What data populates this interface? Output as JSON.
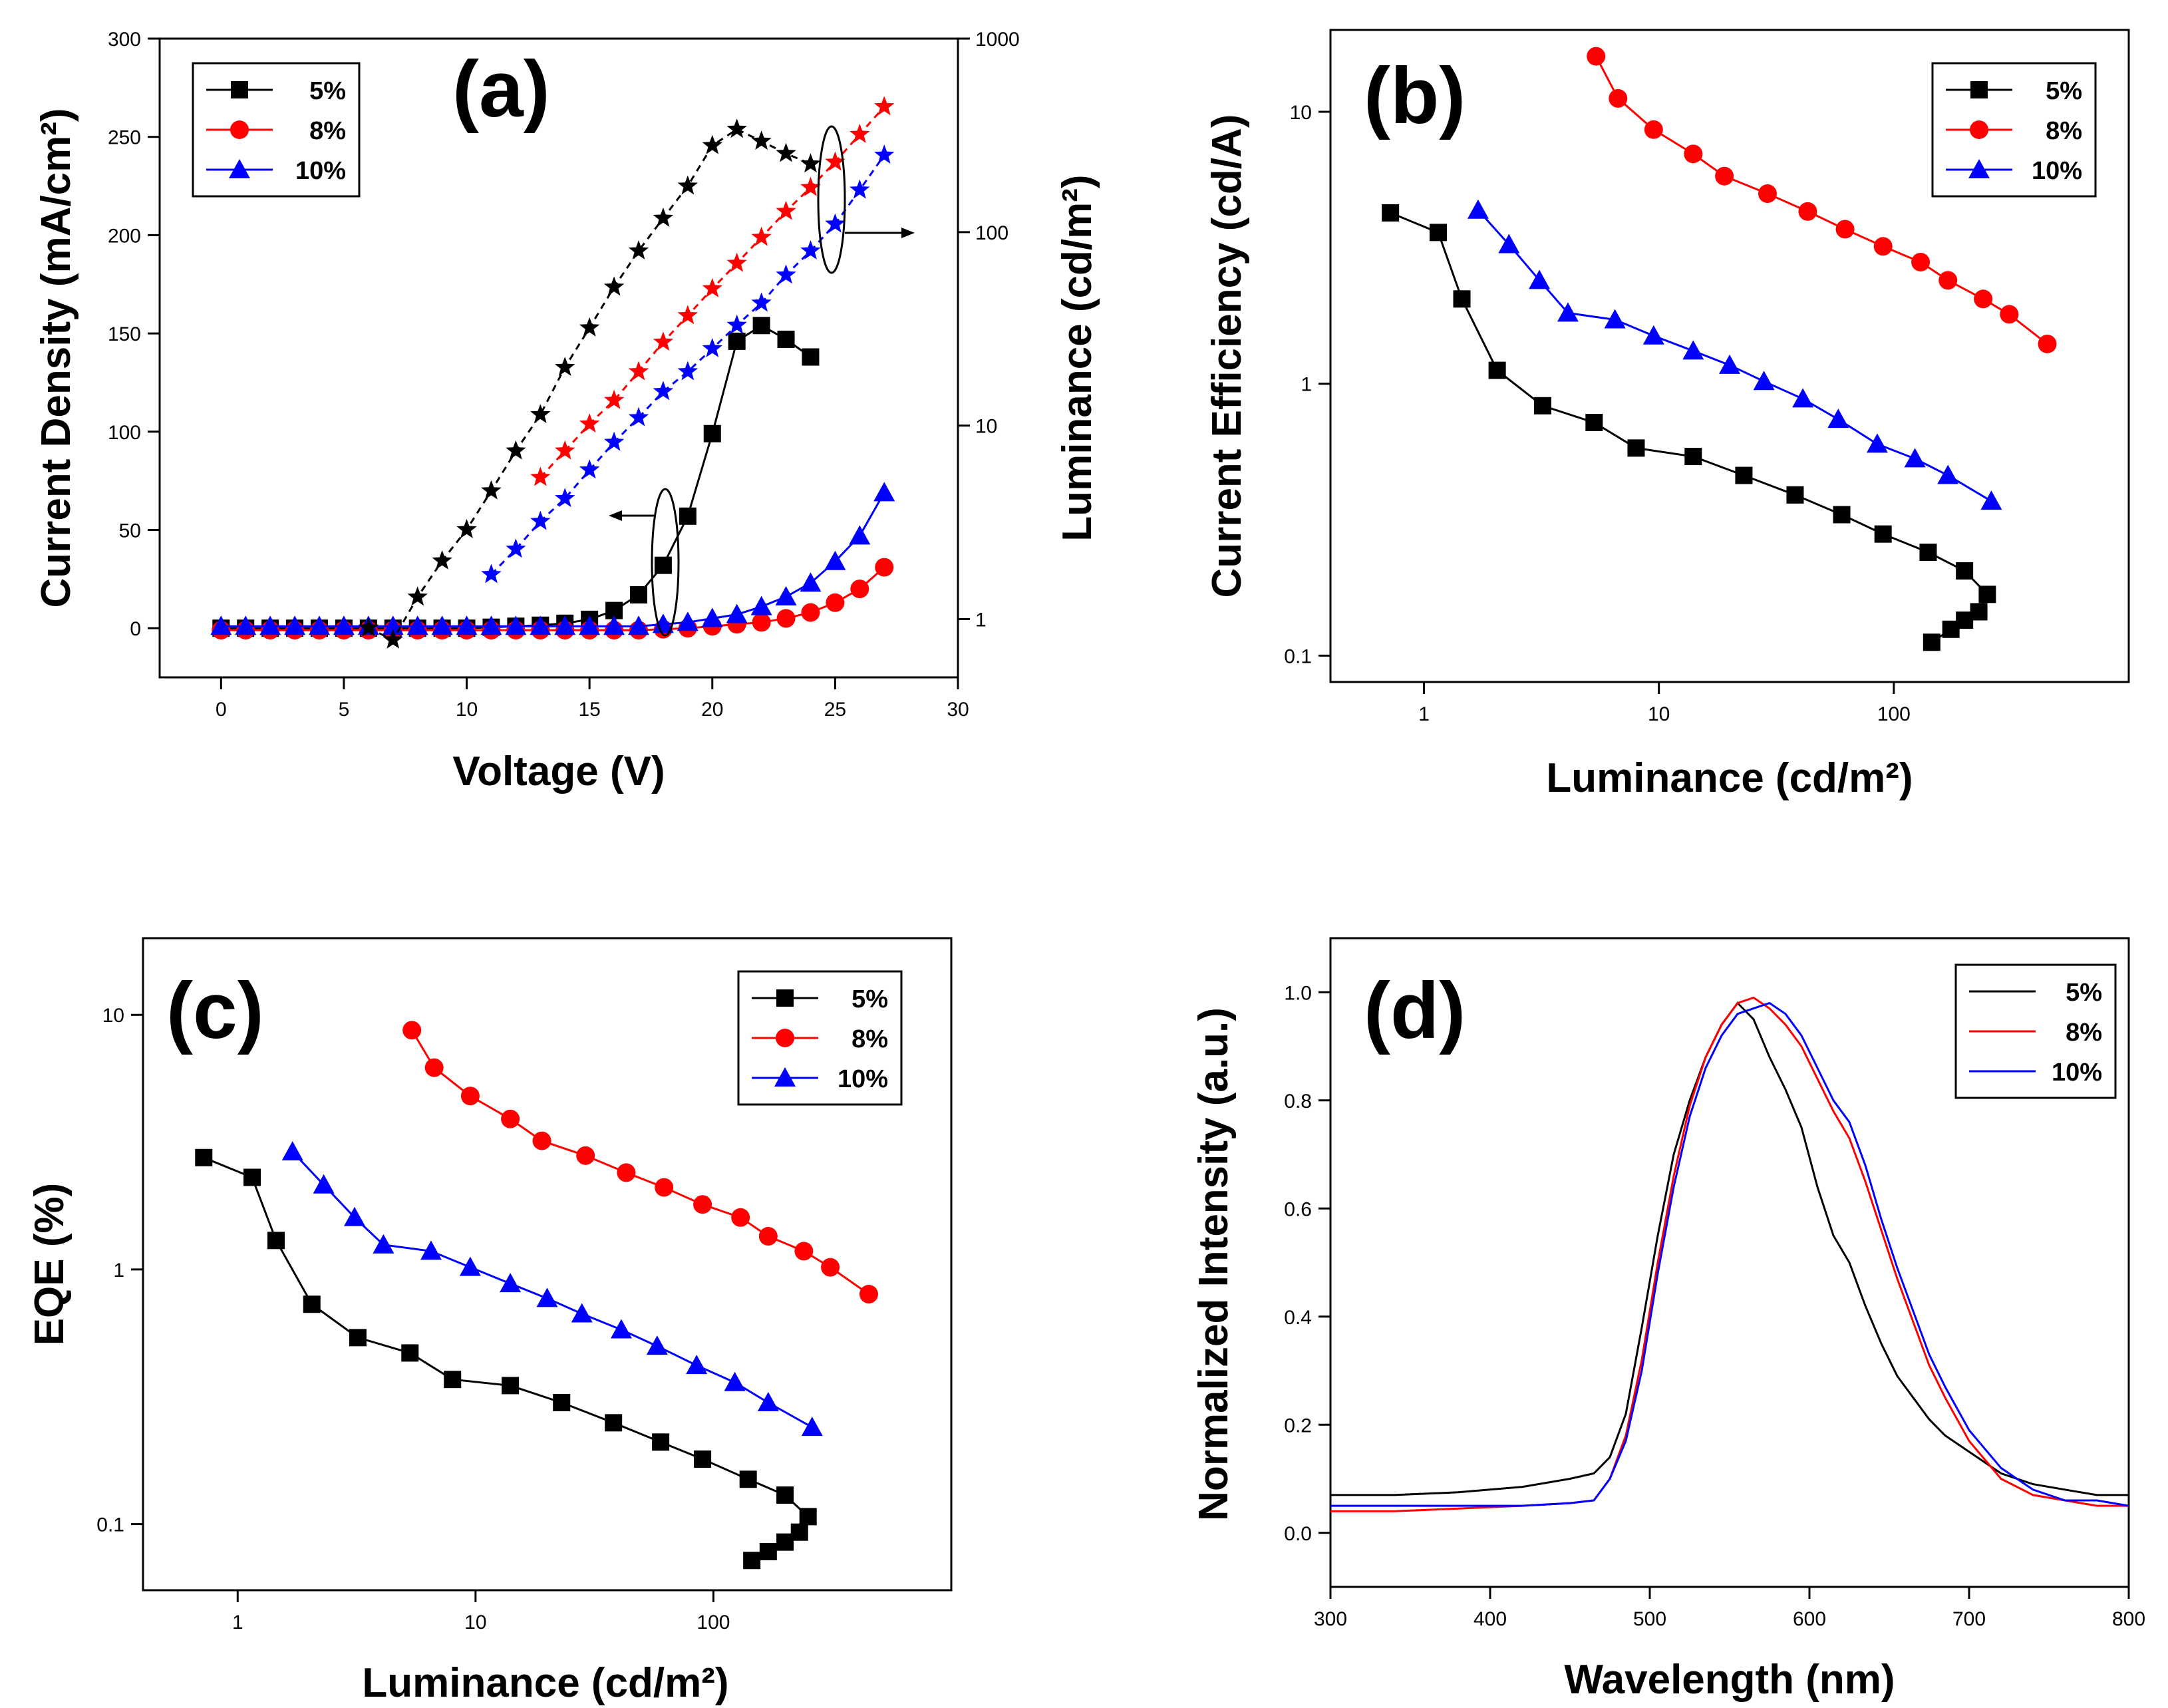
{
  "chart_data": [
    {
      "panel": "(a)",
      "type": "line",
      "xlabel": "Voltage (V)",
      "ylabel": "Current Density (mA/cm²)",
      "y2label": "Luminance (cd/m²)",
      "xlim": [
        -2.5,
        30
      ],
      "ylim": [
        -25,
        300
      ],
      "y2lim": [
        0.5,
        1000
      ],
      "y2scale": "log",
      "xticks": [
        0,
        5,
        10,
        15,
        20,
        25,
        30
      ],
      "yticks": [
        0,
        50,
        100,
        150,
        200,
        250,
        300
      ],
      "y2ticks": [
        1,
        10,
        100,
        1000
      ],
      "legend": [
        "5%",
        "8%",
        "10%"
      ],
      "legend_position": "top-left",
      "series": [
        {
          "name": "5%",
          "color": "#000000",
          "marker": "square",
          "axis": "left",
          "x": [
            0,
            1,
            2,
            3,
            4,
            5,
            6,
            7,
            8,
            9,
            10,
            11,
            12,
            13,
            14,
            15,
            16,
            17,
            18,
            19,
            20,
            21,
            22,
            23,
            24
          ],
          "y": [
            0,
            0,
            0,
            0,
            0,
            0,
            0,
            0,
            0,
            0,
            0,
            0.5,
            1,
            1.5,
            2.5,
            4.5,
            9,
            17,
            32,
            57,
            99,
            146,
            154,
            147,
            138
          ]
        },
        {
          "name": "8%",
          "color": "#ff0000",
          "marker": "circle",
          "axis": "left",
          "x": [
            0,
            1,
            2,
            3,
            4,
            5,
            6,
            7,
            8,
            9,
            10,
            11,
            12,
            13,
            14,
            15,
            16,
            17,
            18,
            19,
            20,
            21,
            22,
            23,
            24,
            25,
            26,
            27
          ],
          "y": [
            -1,
            -1,
            -1,
            -1,
            -1,
            -1,
            -1,
            -1,
            -1,
            -1,
            -1,
            -1,
            -1,
            -1,
            -1,
            -1,
            -1,
            -1,
            -0.5,
            0,
            1,
            2,
            3,
            5,
            8,
            13,
            20,
            31
          ]
        },
        {
          "name": "10%",
          "color": "#0000ff",
          "marker": "triangle",
          "axis": "left",
          "x": [
            0,
            1,
            2,
            3,
            4,
            5,
            6,
            7,
            8,
            9,
            10,
            11,
            12,
            13,
            14,
            15,
            16,
            17,
            18,
            19,
            20,
            21,
            22,
            23,
            24,
            25,
            26,
            27
          ],
          "y": [
            1,
            1,
            1,
            1,
            1,
            1,
            1,
            1,
            1,
            1,
            1,
            1,
            1,
            1,
            1,
            1,
            1,
            1,
            2,
            3,
            5,
            7,
            11,
            16,
            23,
            34,
            47,
            69
          ]
        },
        {
          "name": "5% luminance",
          "color": "#000000",
          "marker": "star",
          "axis": "right",
          "x": [
            6,
            7,
            8,
            9,
            10,
            11,
            12,
            13,
            14,
            15,
            16,
            17,
            18,
            19,
            20,
            21,
            22,
            23,
            24
          ],
          "y": [
            0.9,
            0.78,
            1.3,
            2,
            2.9,
            4.6,
            7.4,
            11.4,
            20,
            32,
            52,
            80,
            118,
            173,
            280,
            340,
            295,
            255,
            225
          ]
        },
        {
          "name": "8% luminance",
          "color": "#ff0000",
          "marker": "star",
          "axis": "right",
          "x": [
            13,
            14,
            15,
            16,
            17,
            18,
            19,
            20,
            21,
            22,
            23,
            24,
            25,
            26,
            27
          ],
          "y": [
            5.4,
            7.4,
            10.2,
            13.5,
            19,
            27,
            37,
            51,
            69,
            94,
            128,
            170,
            230,
            320,
            445
          ]
        },
        {
          "name": "10% luminance",
          "color": "#0000ff",
          "marker": "star",
          "axis": "right",
          "x": [
            11,
            12,
            13,
            14,
            15,
            16,
            17,
            18,
            19,
            20,
            21,
            22,
            23,
            24,
            25,
            26,
            27
          ],
          "y": [
            1.7,
            2.3,
            3.2,
            4.2,
            5.9,
            8.2,
            11,
            15,
            19,
            25,
            33,
            43,
            60,
            80,
            110,
            165,
            250
          ]
        }
      ]
    },
    {
      "panel": "(b)",
      "type": "line",
      "xlabel": "Luminance (cd/m²)",
      "ylabel": "Current Efficiency (cd/A)",
      "xscale": "log",
      "yscale": "log",
      "xlim": [
        0.4,
        1000
      ],
      "ylim": [
        0.08,
        20
      ],
      "xticks": [
        1,
        10,
        100
      ],
      "yticks": [
        0.1,
        1,
        10
      ],
      "legend": [
        "5%",
        "8%",
        "10%"
      ],
      "legend_position": "top-right",
      "series": [
        {
          "name": "5%",
          "color": "#000000",
          "marker": "square",
          "x": [
            0.72,
            1.15,
            1.45,
            2.05,
            3.2,
            5.3,
            8,
            14,
            23,
            38,
            60,
            90,
            140,
            200,
            250,
            230,
            200,
            175,
            145
          ],
          "y": [
            4.25,
            3.6,
            2.05,
            1.12,
            0.83,
            0.72,
            0.58,
            0.54,
            0.46,
            0.39,
            0.33,
            0.28,
            0.24,
            0.205,
            0.168,
            0.145,
            0.135,
            0.125,
            0.112
          ]
        },
        {
          "name": "8%",
          "color": "#ff0000",
          "marker": "circle",
          "x": [
            5.4,
            6.7,
            9.5,
            14,
            19,
            29,
            43,
            62,
            90,
            130,
            170,
            240,
            310,
            450
          ],
          "y": [
            16,
            11.2,
            8.6,
            7,
            5.8,
            5,
            4.3,
            3.7,
            3.2,
            2.8,
            2.4,
            2.05,
            1.8,
            1.4
          ]
        },
        {
          "name": "10%",
          "color": "#0000ff",
          "marker": "triangle",
          "x": [
            1.7,
            2.3,
            3.1,
            4.1,
            6.5,
            9.5,
            14,
            20,
            28,
            41,
            58,
            85,
            123,
            170,
            260
          ],
          "y": [
            4.35,
            3.25,
            2.4,
            1.82,
            1.72,
            1.5,
            1.32,
            1.17,
            1.02,
            0.88,
            0.74,
            0.6,
            0.53,
            0.46,
            0.37
          ]
        }
      ]
    },
    {
      "panel": "(c)",
      "type": "line",
      "xlabel": "Luminance (cd/m²)",
      "ylabel": "EQE (%)",
      "xscale": "log",
      "yscale": "log",
      "xlim": [
        0.4,
        1000
      ],
      "ylim": [
        0.055,
        20
      ],
      "xticks": [
        1,
        10,
        100
      ],
      "yticks": [
        0.1,
        1,
        10
      ],
      "legend": [
        "5%",
        "8%",
        "10%"
      ],
      "legend_position": "top-right",
      "series": [
        {
          "name": "5%",
          "color": "#000000",
          "marker": "square",
          "x": [
            0.72,
            1.15,
            1.45,
            2.05,
            3.2,
            5.3,
            8,
            14,
            23,
            38,
            60,
            90,
            140,
            200,
            250,
            230,
            200,
            170,
            145
          ],
          "y": [
            2.75,
            2.3,
            1.3,
            0.73,
            0.54,
            0.47,
            0.37,
            0.35,
            0.3,
            0.25,
            0.21,
            0.18,
            0.15,
            0.13,
            0.107,
            0.093,
            0.085,
            0.078,
            0.072
          ]
        },
        {
          "name": "8%",
          "color": "#ff0000",
          "marker": "circle",
          "x": [
            5.4,
            6.7,
            9.5,
            14,
            19,
            29,
            43,
            62,
            90,
            130,
            170,
            240,
            310,
            450
          ],
          "y": [
            8.7,
            6.2,
            4.8,
            3.9,
            3.2,
            2.8,
            2.4,
            2.1,
            1.8,
            1.6,
            1.35,
            1.18,
            1.02,
            0.8
          ]
        },
        {
          "name": "10%",
          "color": "#0000ff",
          "marker": "triangle",
          "x": [
            1.7,
            2.3,
            3.1,
            4.1,
            6.5,
            9.5,
            14,
            20,
            28,
            41,
            58,
            85,
            123,
            170,
            260
          ],
          "y": [
            2.9,
            2.15,
            1.6,
            1.25,
            1.18,
            1.02,
            0.88,
            0.77,
            0.67,
            0.58,
            0.5,
            0.42,
            0.36,
            0.3,
            0.24
          ]
        }
      ]
    },
    {
      "panel": "(d)",
      "type": "line",
      "xlabel": "Wavelength (nm)",
      "ylabel": "Normalized Intensity (a.u.)",
      "xlim": [
        300,
        800
      ],
      "ylim": [
        -0.1,
        1.1
      ],
      "xticks": [
        300,
        400,
        500,
        600,
        700,
        800
      ],
      "yticks": [
        0.0,
        0.2,
        0.4,
        0.6,
        0.8,
        1.0
      ],
      "yticklabels": [
        "0.0",
        "0.2",
        "0.4",
        "0.6",
        "0.8",
        "1.0"
      ],
      "legend": [
        "5%",
        "8%",
        "10%"
      ],
      "legend_position": "top-right",
      "series": [
        {
          "name": "5%",
          "color": "#000000",
          "x": [
            300,
            340,
            380,
            420,
            450,
            465,
            475,
            485,
            495,
            505,
            515,
            525,
            535,
            545,
            555,
            565,
            575,
            585,
            595,
            605,
            615,
            625,
            635,
            645,
            655,
            665,
            675,
            685,
            700,
            720,
            740,
            760,
            780,
            800
          ],
          "y": [
            0.07,
            0.07,
            0.075,
            0.085,
            0.1,
            0.11,
            0.14,
            0.22,
            0.38,
            0.55,
            0.7,
            0.8,
            0.88,
            0.94,
            0.98,
            0.95,
            0.88,
            0.82,
            0.75,
            0.64,
            0.55,
            0.5,
            0.42,
            0.35,
            0.29,
            0.25,
            0.21,
            0.18,
            0.15,
            0.11,
            0.09,
            0.08,
            0.07,
            0.07
          ]
        },
        {
          "name": "8%",
          "color": "#ff0000",
          "x": [
            300,
            340,
            380,
            420,
            450,
            465,
            475,
            485,
            495,
            505,
            515,
            525,
            535,
            545,
            555,
            565,
            575,
            585,
            595,
            605,
            615,
            625,
            635,
            645,
            655,
            665,
            675,
            685,
            700,
            720,
            740,
            760,
            780,
            800
          ],
          "y": [
            0.04,
            0.04,
            0.045,
            0.05,
            0.055,
            0.06,
            0.1,
            0.18,
            0.32,
            0.5,
            0.66,
            0.79,
            0.88,
            0.94,
            0.98,
            0.99,
            0.97,
            0.94,
            0.9,
            0.84,
            0.78,
            0.73,
            0.65,
            0.56,
            0.47,
            0.39,
            0.31,
            0.25,
            0.17,
            0.1,
            0.07,
            0.06,
            0.05,
            0.05
          ]
        },
        {
          "name": "10%",
          "color": "#0000ff",
          "x": [
            300,
            340,
            380,
            420,
            450,
            465,
            475,
            485,
            495,
            505,
            515,
            525,
            535,
            545,
            555,
            565,
            575,
            585,
            595,
            605,
            615,
            625,
            635,
            645,
            655,
            665,
            675,
            685,
            700,
            720,
            740,
            760,
            780,
            800
          ],
          "y": [
            0.05,
            0.05,
            0.05,
            0.05,
            0.055,
            0.06,
            0.1,
            0.17,
            0.3,
            0.48,
            0.64,
            0.77,
            0.86,
            0.92,
            0.96,
            0.97,
            0.98,
            0.96,
            0.92,
            0.86,
            0.8,
            0.76,
            0.68,
            0.58,
            0.49,
            0.41,
            0.33,
            0.27,
            0.19,
            0.12,
            0.08,
            0.06,
            0.06,
            0.05
          ]
        }
      ]
    }
  ]
}
